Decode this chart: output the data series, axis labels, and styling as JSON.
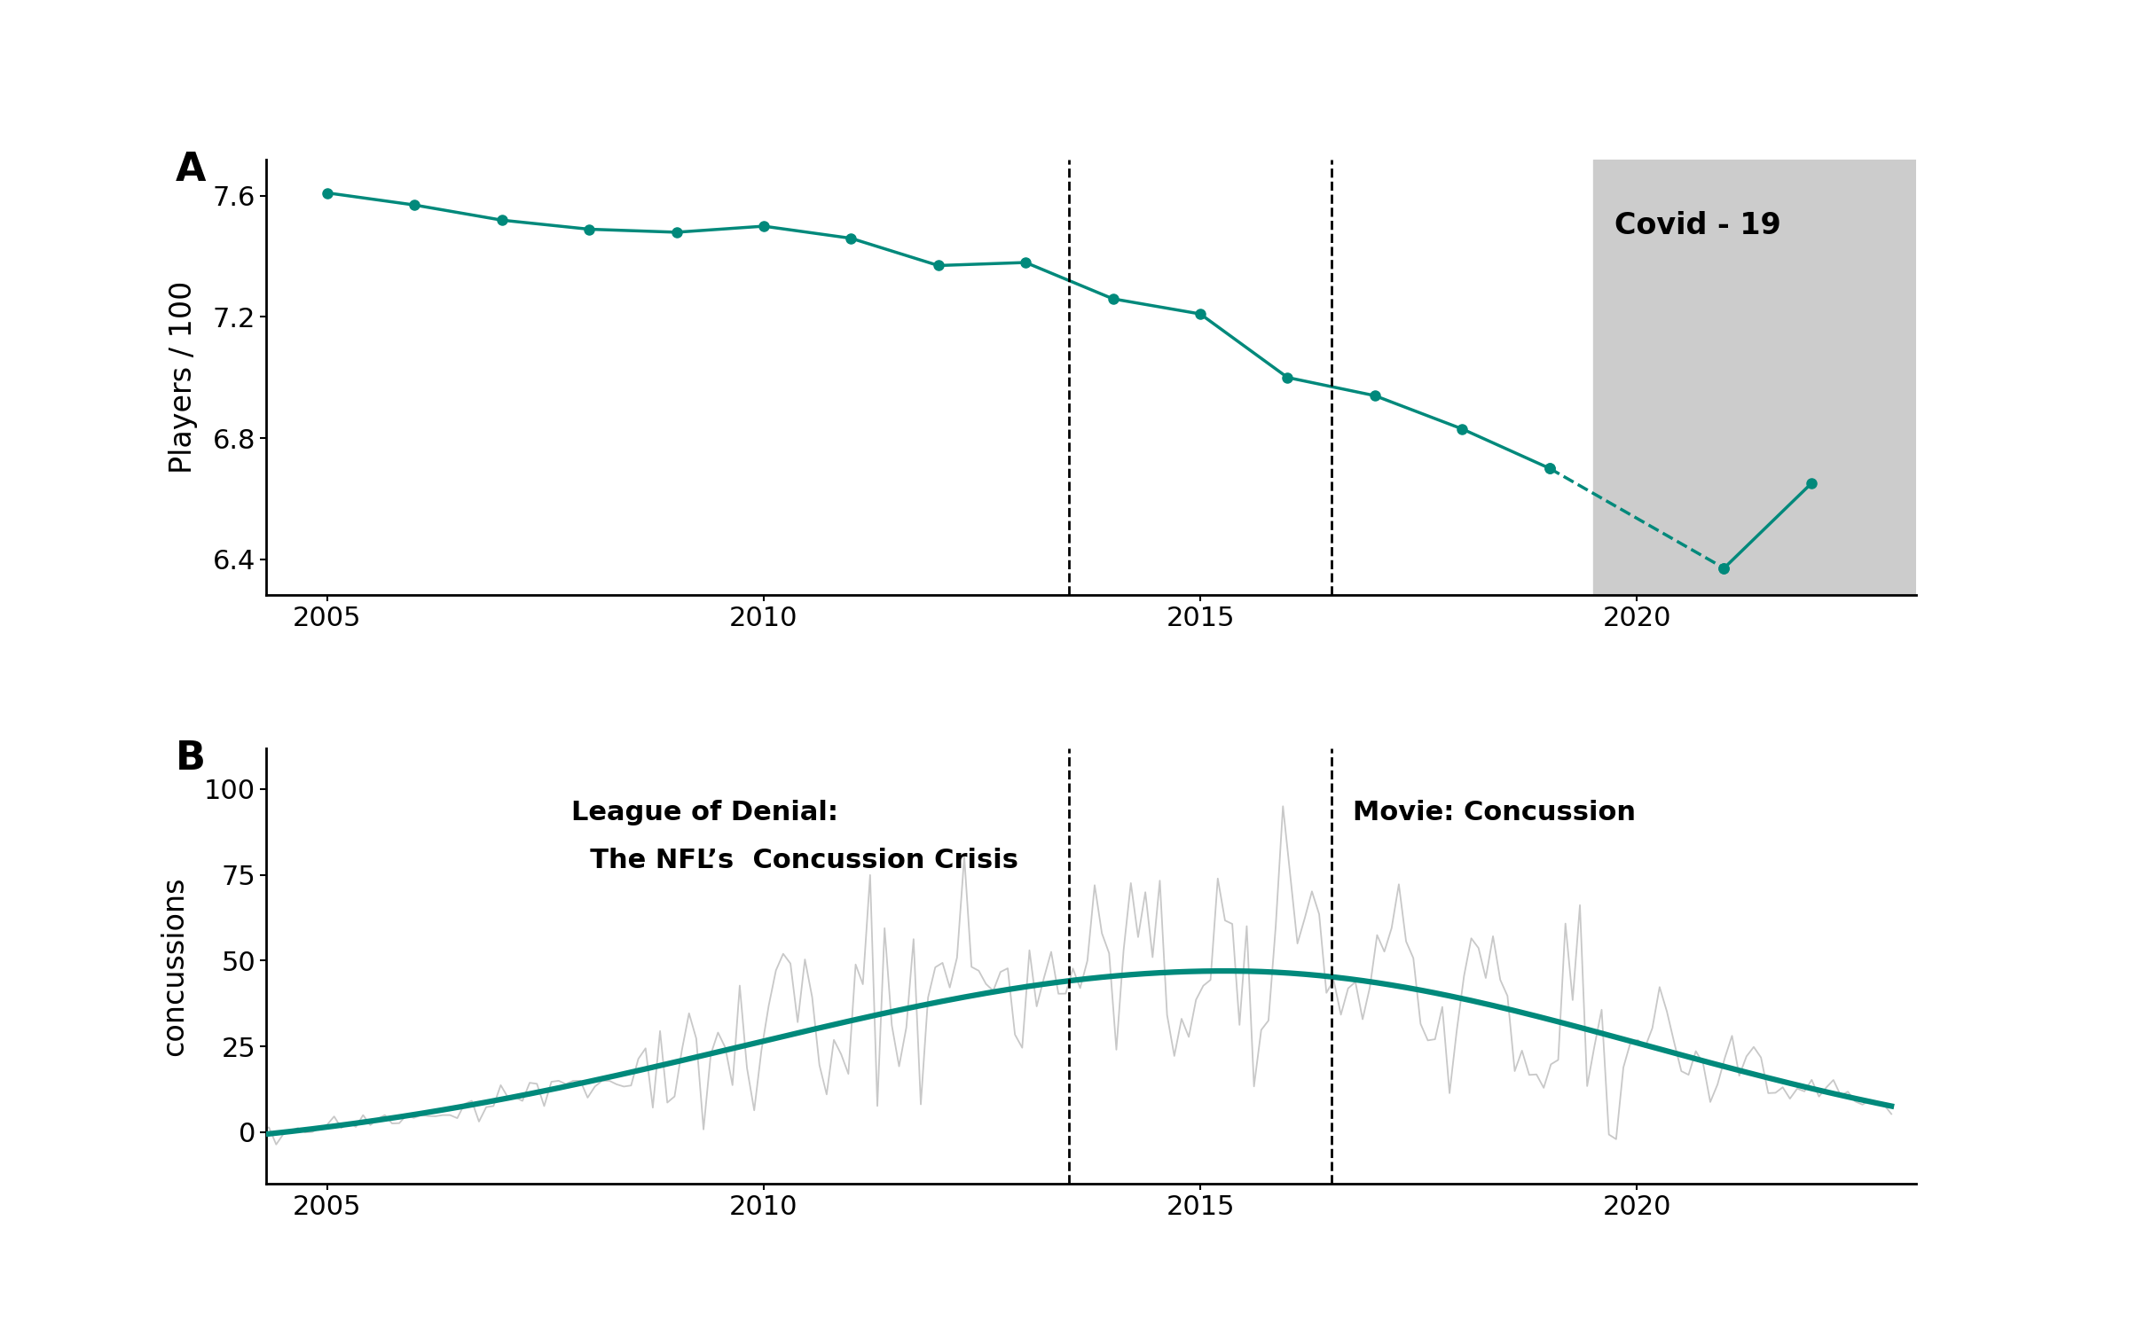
{
  "panel_a": {
    "years_solid": [
      2005,
      2006,
      2007,
      2008,
      2009,
      2010,
      2011,
      2012,
      2013,
      2014,
      2015,
      2016,
      2017,
      2018,
      2019
    ],
    "values_solid": [
      7.61,
      7.57,
      7.52,
      7.49,
      7.48,
      7.5,
      7.46,
      7.37,
      7.38,
      7.26,
      7.21,
      7.0,
      6.94,
      6.83,
      6.7
    ],
    "years_dashed": [
      2019,
      2021
    ],
    "values_dashed": [
      6.7,
      6.37
    ],
    "years_after": [
      2021,
      2022
    ],
    "values_after": [
      6.37,
      6.65
    ],
    "ylabel": "Players / 100",
    "ylim": [
      6.28,
      7.72
    ],
    "yticks": [
      6.4,
      6.8,
      7.2,
      7.6
    ],
    "xlim": [
      2004.3,
      2023.2
    ],
    "xticks": [
      2005,
      2010,
      2015,
      2020
    ],
    "vline1": 2013.5,
    "vline2": 2016.5,
    "covid_xstart": 2019.5,
    "covid_xend": 2023.2,
    "covid_label": "Covid - 19",
    "panel_label": "A",
    "teal_color": "#00897B",
    "line_width": 2.5,
    "marker_size": 8
  },
  "panel_b": {
    "ylabel": "concussions",
    "ylim": [
      -15,
      112
    ],
    "yticks": [
      0,
      25,
      50,
      75,
      100
    ],
    "xlim": [
      2004.3,
      2023.2
    ],
    "xticks": [
      2005,
      2010,
      2015,
      2020
    ],
    "vline1": 2013.5,
    "vline2": 2016.5,
    "panel_label": "B",
    "label1_line1": "League of Denial:",
    "label1_line2": "  The NFL’s  Concussion Crisis",
    "label2": "Movie: Concussion",
    "teal_color": "#00897B",
    "raw_color": "#c8c8c8",
    "smooth_lw": 4.5,
    "raw_lw": 1.3
  }
}
